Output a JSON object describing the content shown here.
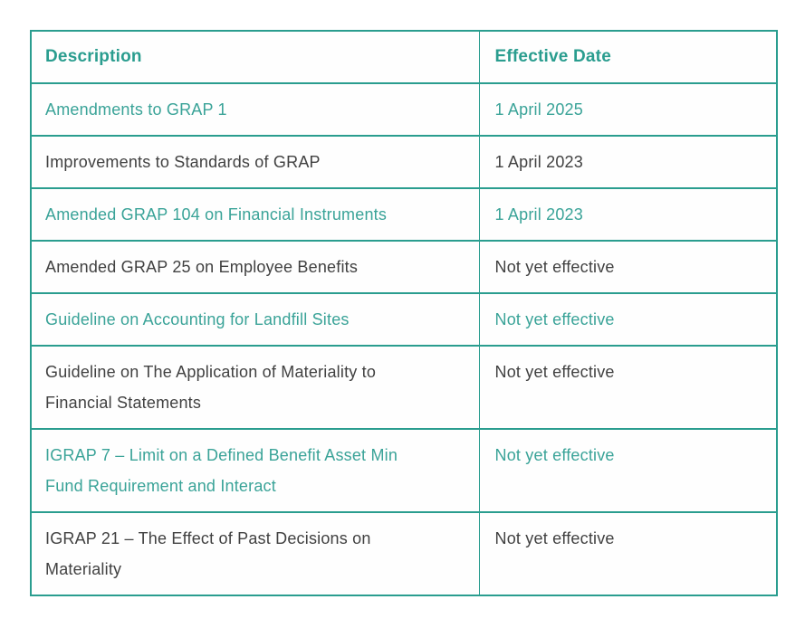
{
  "theme": {
    "accent_color": "#2a9d8f",
    "link_color": "#3aa398",
    "text_color": "#414141",
    "cell_background": "#fefefe",
    "page_background": "#ffffff"
  },
  "table": {
    "columns": [
      "Description",
      "Effective Date"
    ],
    "rows": [
      {
        "description": "Amendments to GRAP 1",
        "effective_date": "1 April 2025",
        "link": true
      },
      {
        "description": "Improvements to Standards of GRAP",
        "effective_date": "1 April 2023",
        "link": false
      },
      {
        "description": "Amended GRAP 104 on Financial Instruments",
        "effective_date": "1 April 2023",
        "link": true
      },
      {
        "description": "Amended GRAP 25 on Employee Benefits",
        "effective_date": "Not yet effective",
        "link": false
      },
      {
        "description": "Guideline on Accounting for Landfill Sites",
        "effective_date": "Not yet effective",
        "link": true
      },
      {
        "description": "Guideline on The Application of Materiality to\nFinancial Statements",
        "effective_date": "Not yet effective",
        "link": false
      },
      {
        "description": "IGRAP 7 – Limit on a Defined Benefit Asset Min\nFund Requirement and Interact",
        "effective_date": "Not yet effective",
        "link": true
      },
      {
        "description": "IGRAP 21 – The Effect of Past Decisions on\nMateriality",
        "effective_date": "Not yet effective",
        "link": false
      }
    ]
  }
}
